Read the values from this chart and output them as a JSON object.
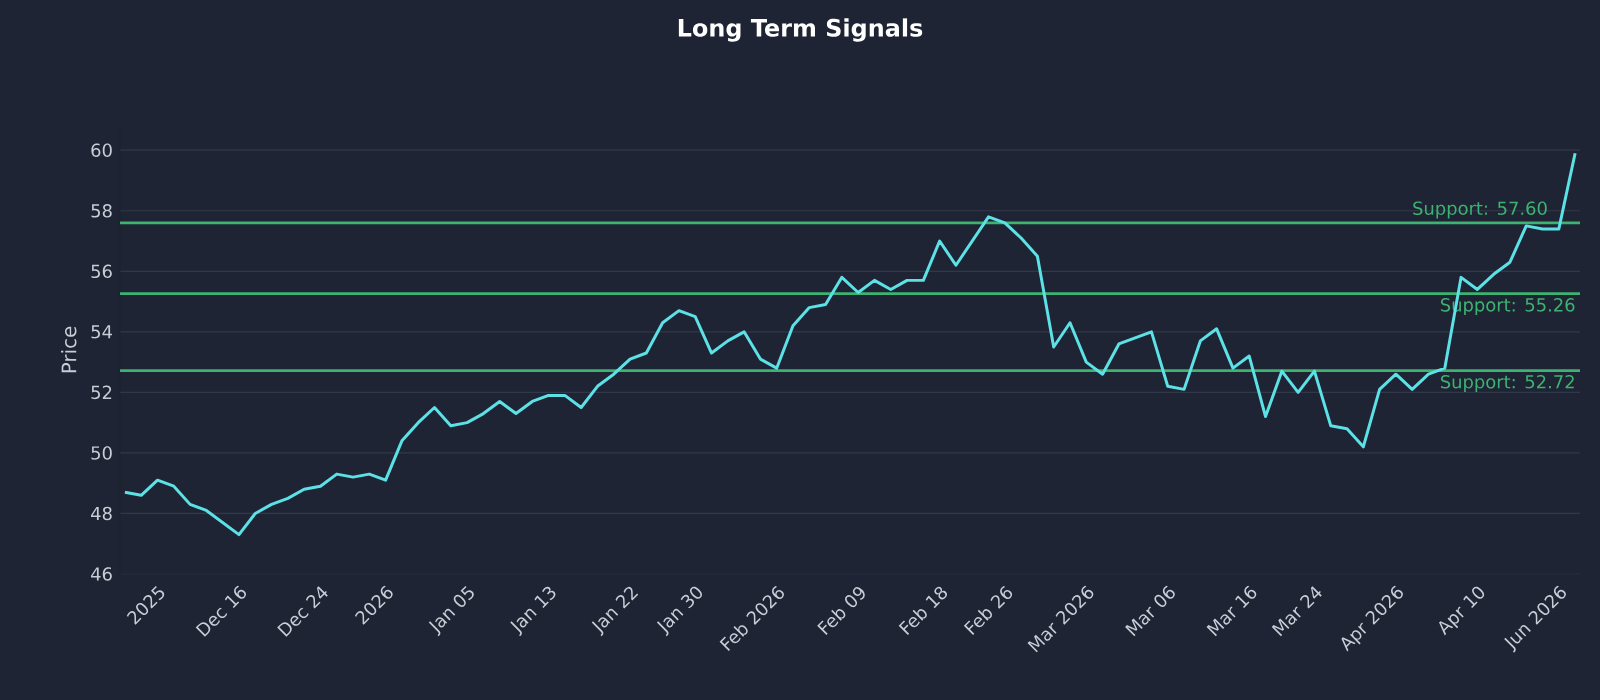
{
  "chart_data": {
    "type": "line",
    "title": "Long Term Signals",
    "ylabel": "Price",
    "categories": [
      null,
      null,
      "2025",
      null,
      null,
      null,
      null,
      "Dec 16",
      null,
      null,
      null,
      null,
      "Dec 24",
      null,
      null,
      null,
      "2026",
      null,
      null,
      null,
      null,
      "Jan 05",
      null,
      null,
      null,
      null,
      "Jan 13",
      null,
      null,
      null,
      null,
      "Jan 22",
      null,
      null,
      null,
      "Jan 30",
      null,
      null,
      null,
      null,
      "Feb 2026",
      null,
      null,
      null,
      null,
      "Feb 09",
      null,
      null,
      null,
      null,
      "Feb 18",
      null,
      null,
      null,
      "Feb 26",
      null,
      null,
      null,
      null,
      "Mar 2026",
      null,
      null,
      null,
      null,
      "Mar 06",
      null,
      null,
      null,
      null,
      "Mar 16",
      null,
      null,
      null,
      "Mar 24",
      null,
      null,
      null,
      null,
      "Apr 2026",
      null,
      null,
      null,
      null,
      "Apr 10",
      null,
      null,
      null,
      null,
      "Jun 2026",
      null
    ],
    "series": [
      {
        "color": "#5ce1e6",
        "values": [
          48.7,
          48.6,
          49.1,
          48.9,
          48.3,
          48.1,
          47.7,
          47.3,
          48.0,
          48.3,
          48.5,
          48.8,
          48.9,
          49.3,
          49.2,
          49.3,
          49.1,
          50.4,
          51.0,
          51.5,
          50.9,
          51.0,
          51.3,
          51.7,
          51.3,
          51.7,
          51.9,
          51.9,
          51.5,
          52.2,
          52.6,
          53.1,
          53.3,
          54.3,
          54.7,
          54.5,
          53.3,
          53.7,
          54.0,
          53.1,
          52.8,
          54.2,
          54.8,
          54.9,
          55.8,
          55.3,
          55.7,
          55.4,
          55.7,
          55.7,
          57.0,
          56.2,
          57.0,
          57.8,
          57.6,
          57.1,
          56.5,
          53.5,
          54.3,
          53.0,
          52.6,
          53.6,
          53.8,
          54.0,
          52.2,
          52.1,
          53.7,
          54.1,
          52.8,
          53.2,
          51.2,
          52.7,
          52.0,
          52.7,
          50.9,
          50.8,
          50.2,
          52.1,
          52.6,
          52.1,
          52.6,
          52.8,
          55.8,
          55.4,
          55.9,
          56.3,
          57.5,
          57.4,
          57.4,
          59.9
        ]
      }
    ],
    "ylim": [
      46,
      60.8
    ],
    "yticks": [
      46,
      48,
      50,
      52,
      54,
      56,
      58,
      60
    ],
    "grid": "y",
    "line_style": "solid",
    "marker": "none",
    "ref_lines": [
      {
        "axis": "y",
        "value": 57.6,
        "label": "Support: 57.60",
        "color": "#3cb371"
      },
      {
        "axis": "y",
        "value": 55.26,
        "label": "Support: 55.26",
        "color": "#3cb371"
      },
      {
        "axis": "y",
        "value": 52.72,
        "label": "Support: 52.72",
        "color": "#3cb371"
      }
    ]
  }
}
